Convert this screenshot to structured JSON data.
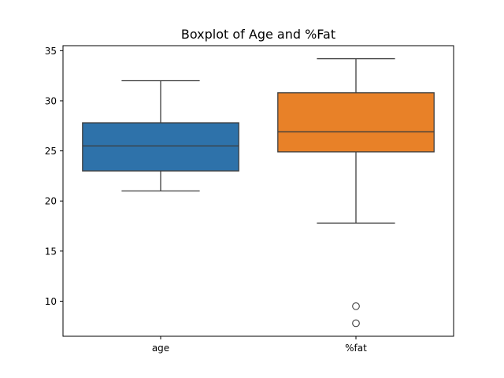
{
  "chart_data": {
    "type": "boxplot",
    "title": "Boxplot of Age and %Fat",
    "xlabel": "",
    "ylabel": "",
    "categories": [
      "age",
      "%fat"
    ],
    "ylim": [
      6.5,
      35.5
    ],
    "yticks": [
      10,
      15,
      20,
      25,
      30,
      35
    ],
    "grid": false,
    "series": [
      {
        "category": "age",
        "color": "#2e72aa",
        "whisker_low": 21.0,
        "q1": 23.0,
        "median": 25.5,
        "q3": 27.8,
        "whisker_high": 32.0,
        "outliers": []
      },
      {
        "category": "%fat",
        "color": "#e88128",
        "whisker_low": 17.8,
        "q1": 24.9,
        "median": 26.9,
        "q3": 30.8,
        "whisker_high": 34.2,
        "outliers": [
          9.5,
          7.8
        ]
      }
    ]
  }
}
